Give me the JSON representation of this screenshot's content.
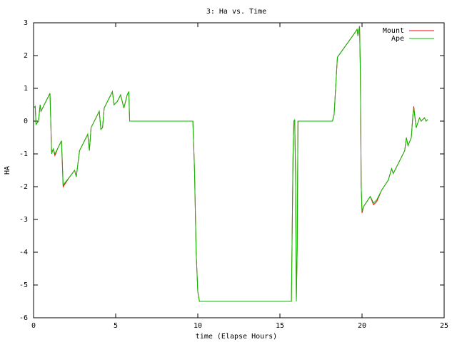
{
  "chart_data": {
    "type": "line",
    "title": "3: Ha vs. Time",
    "x_label": "time (Elapse Hours)",
    "y_label": "HA",
    "xlim": [
      0,
      25
    ],
    "xticks": [
      0,
      5,
      10,
      15,
      20,
      25
    ],
    "ylim": [
      -6,
      3
    ],
    "yticks": [
      -6,
      -5,
      -4,
      -3,
      -2,
      -1,
      0,
      1,
      2,
      3
    ],
    "grid": false,
    "legend": "top-right",
    "series": [
      {
        "name": "Mount",
        "color": "#ff0000",
        "x": [
          0,
          0.1,
          0.15,
          0.3,
          0.4,
          0.45,
          1.0,
          1.1,
          1.2,
          1.3,
          1.5,
          1.7,
          1.75,
          1.8,
          2.2,
          2.5,
          2.6,
          2.8,
          3.3,
          3.4,
          3.5,
          4.0,
          4.1,
          4.2,
          4.3,
          4.8,
          4.9,
          5.1,
          5.3,
          5.5,
          5.7,
          5.8,
          5.85,
          9.7,
          9.8,
          9.9,
          10.0,
          10.1,
          15.7,
          15.8,
          15.85,
          15.9,
          15.95,
          16.0,
          16.05,
          16.1,
          18.2,
          18.3,
          18.5,
          19.5,
          19.7,
          19.75,
          19.85,
          19.88,
          19.9,
          19.95,
          20.0,
          20.1,
          20.5,
          20.7,
          20.9,
          21.2,
          21.6,
          21.8,
          21.9,
          22.3,
          22.6,
          22.7,
          22.8,
          23.0,
          23.1,
          23.15,
          23.3,
          23.5,
          23.6,
          23.8,
          23.9,
          24.0
        ],
        "values": [
          0.4,
          0.45,
          -0.1,
          0,
          0.5,
          0.3,
          0.85,
          -0.95,
          -0.85,
          -1.05,
          -0.8,
          -0.6,
          -1.3,
          -2.0,
          -1.7,
          -1.5,
          -1.7,
          -0.9,
          -0.4,
          -0.9,
          -0.2,
          0.3,
          -0.25,
          -0.2,
          0.4,
          0.9,
          0.5,
          0.6,
          0.8,
          0.4,
          0.8,
          0.9,
          0,
          0,
          -1.5,
          -4,
          -5.2,
          -5.5,
          -5.5,
          -1.0,
          0,
          0.05,
          -1.5,
          -5.5,
          -4,
          0,
          0,
          0.2,
          1.95,
          2.65,
          2.8,
          2.6,
          2.9,
          2.0,
          1.4,
          -2.0,
          -2.8,
          -2.6,
          -2.3,
          -2.55,
          -2.45,
          -2.1,
          -1.8,
          -1.45,
          -1.6,
          -1.2,
          -0.9,
          -0.5,
          -0.75,
          -0.5,
          0.2,
          0.45,
          -0.2,
          0.1,
          0,
          0.1,
          0,
          0.05
        ]
      },
      {
        "name": "Ape",
        "color": "#00c000",
        "x": [
          0,
          0.1,
          0.15,
          0.3,
          0.4,
          0.45,
          1.0,
          1.1,
          1.2,
          1.3,
          1.5,
          1.7,
          1.75,
          1.8,
          2.2,
          2.5,
          2.6,
          2.8,
          3.3,
          3.4,
          3.5,
          4.0,
          4.1,
          4.2,
          4.3,
          4.8,
          4.9,
          5.1,
          5.3,
          5.5,
          5.7,
          5.8,
          5.85,
          9.7,
          9.8,
          9.9,
          10.0,
          10.1,
          15.7,
          15.8,
          15.85,
          15.9,
          15.95,
          16.0,
          16.05,
          16.1,
          18.2,
          18.3,
          18.5,
          19.5,
          19.7,
          19.75,
          19.85,
          19.9,
          19.95,
          20.0,
          20.1,
          20.5,
          20.7,
          20.9,
          21.2,
          21.6,
          21.8,
          21.9,
          22.3,
          22.6,
          22.7,
          22.8,
          23.0,
          23.1,
          23.15,
          23.3,
          23.5,
          23.6,
          23.8,
          23.9,
          24.0
        ],
        "values": [
          0.4,
          0.45,
          -0.1,
          0,
          0.5,
          0.3,
          0.85,
          -1.0,
          -0.85,
          -1.0,
          -0.8,
          -0.6,
          -1.2,
          -1.95,
          -1.7,
          -1.5,
          -1.7,
          -0.9,
          -0.4,
          -0.9,
          -0.2,
          0.3,
          -0.25,
          -0.2,
          0.4,
          0.9,
          0.5,
          0.6,
          0.8,
          0.4,
          0.8,
          0.9,
          0,
          0,
          -1.5,
          -4,
          -5.2,
          -5.5,
          -5.5,
          -1.0,
          0,
          0.05,
          -1.5,
          -5.5,
          -4,
          0,
          0,
          0.2,
          1.95,
          2.65,
          2.8,
          2.6,
          2.9,
          1.5,
          -2.0,
          -2.75,
          -2.6,
          -2.3,
          -2.5,
          -2.4,
          -2.1,
          -1.8,
          -1.45,
          -1.6,
          -1.2,
          -0.9,
          -0.5,
          -0.75,
          -0.5,
          0.2,
          0.4,
          -0.2,
          0.1,
          0,
          0.1,
          0,
          0.05
        ]
      }
    ]
  }
}
